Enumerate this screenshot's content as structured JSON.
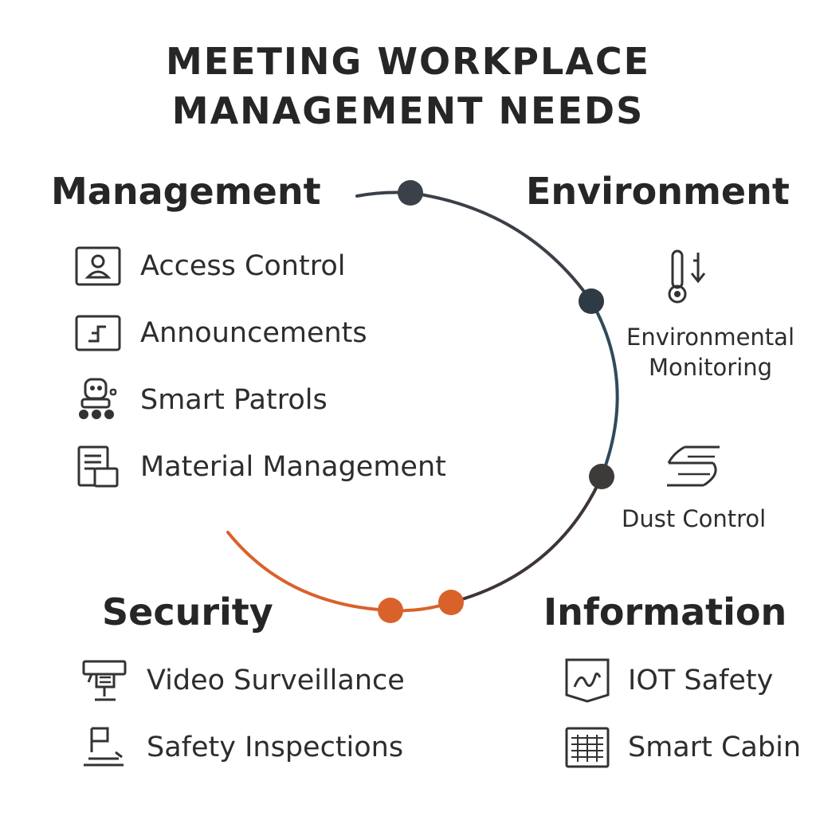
{
  "title": {
    "line1": "MEETING WORKPLACE",
    "line2": "MANAGEMENT NEEDS"
  },
  "management": {
    "heading": "Management",
    "items": [
      {
        "label": "Access Control",
        "icon": "access-card-icon"
      },
      {
        "label": "Announcements",
        "icon": "announcement-board-icon"
      },
      {
        "label": "Smart Patrols",
        "icon": "patrol-robot-icon"
      },
      {
        "label": "Material Management",
        "icon": "document-icon"
      }
    ]
  },
  "environment": {
    "heading": "Environment",
    "items": [
      {
        "label_line1": "Environmental",
        "label_line2": "Monitoring",
        "icon": "thermometer-icon"
      },
      {
        "label_line1": "Dust Control",
        "icon": "dust-wave-icon"
      }
    ]
  },
  "security": {
    "heading": "Security",
    "items": [
      {
        "label": "Video Surveillance",
        "icon": "cctv-camera-icon"
      },
      {
        "label": "Safety Inspections",
        "icon": "inspection-icon"
      }
    ]
  },
  "information": {
    "heading": "Information",
    "items": [
      {
        "label": "IOT Safety",
        "icon": "iot-shield-icon"
      },
      {
        "label": "Smart Cabin",
        "icon": "cabin-grid-icon"
      }
    ]
  },
  "colors": {
    "arc_dark": "#3a4a55",
    "arc_teal": "#2f4b5a",
    "arc_brown": "#3f3535",
    "arc_orange": "#d9622b",
    "node_dark": "#3b4148",
    "node_orange": "#d9622b",
    "text": "#2b2b2b"
  }
}
